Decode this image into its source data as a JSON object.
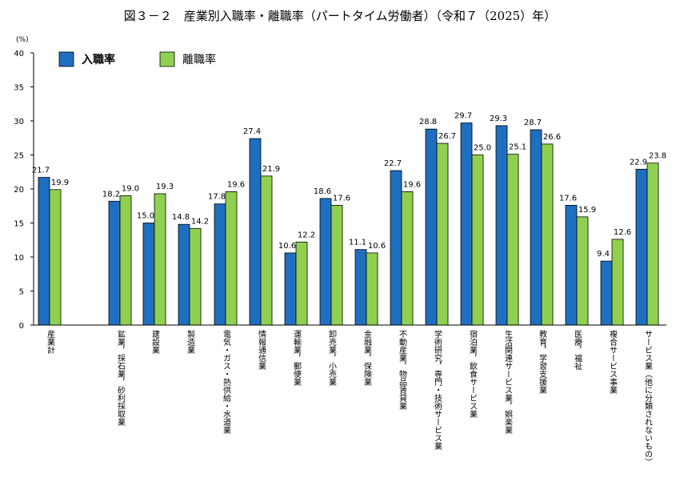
{
  "chart_data": {
    "type": "bar",
    "title": "図３－２　産業別入職率・離職率（パートタイム労働者）（令和７（2025）年）",
    "ylabel": "(%)",
    "ylim": [
      0,
      40
    ],
    "yticks": [
      "0",
      "5",
      "10",
      "15",
      "20",
      "25",
      "30",
      "35",
      "40"
    ],
    "legend_position": "top-left",
    "grid": false,
    "categories": [
      "産業計",
      "鉱業，採石業，砂利採取業",
      "建設業",
      "製造業",
      "電気・ガス・熱供給・水道業",
      "情報通信業",
      "運輸業，郵便業",
      "卸売業，小売業",
      "金融業，保険業",
      "不動産業，物品賃貸業",
      "学術研究，専門・技術サービス業",
      "宿泊業，飲食サービス業",
      "生活関連サービス業，娯楽業",
      "教育，学習支援業",
      "医療，福祉",
      "複合サービス事業",
      "サービス業（他に分類されないもの）"
    ],
    "series": [
      {
        "name": "入職率",
        "color": "#1f6fc0",
        "values": [
          21.7,
          18.2,
          15.0,
          14.8,
          17.8,
          27.4,
          10.6,
          18.6,
          11.1,
          22.7,
          28.8,
          29.7,
          29.3,
          28.7,
          17.6,
          9.4,
          22.9
        ],
        "labels": [
          "21.7",
          "18.2",
          "15.0",
          "14.8",
          "17.8",
          "27.4",
          "10.6",
          "18.6",
          "11.1",
          "22.7",
          "28.8",
          "29.7",
          "29.3",
          "28.7",
          "17.6",
          "9.4",
          "22.9"
        ]
      },
      {
        "name": "離職率",
        "color": "#8fd14f",
        "values": [
          19.9,
          19.0,
          19.3,
          14.2,
          19.6,
          21.9,
          12.2,
          17.6,
          10.6,
          19.6,
          26.7,
          25.0,
          25.1,
          26.6,
          15.9,
          12.6,
          23.8
        ],
        "labels": [
          "19.9",
          "19.0",
          "19.3",
          "14.2",
          "19.6",
          "21.9",
          "12.2",
          "17.6",
          "10.6",
          "19.6",
          "26.7",
          "25.0",
          "25.1",
          "26.6",
          "15.9",
          "12.6",
          "23.8"
        ]
      }
    ]
  }
}
